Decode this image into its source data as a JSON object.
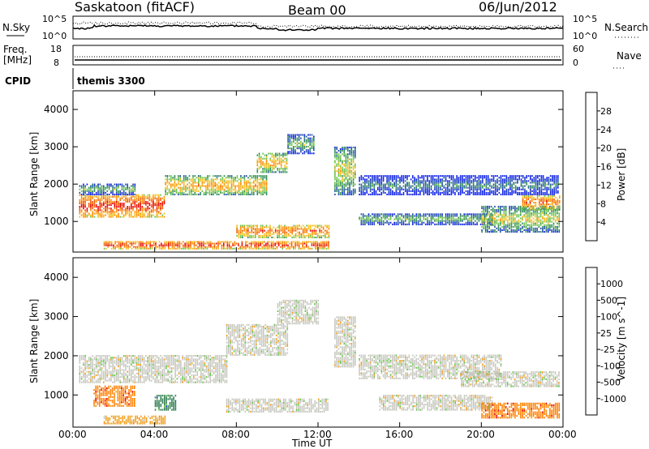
{
  "header": {
    "station": "Saskatoon (fitACF)",
    "beam": "Beam 00",
    "date": "06/Jun/2012"
  },
  "panels": {
    "nsky": {
      "left_label": "N.Sky",
      "ticks_left": [
        "10^5",
        "10^0"
      ],
      "ticks_right": [
        "10^5",
        "10^0"
      ],
      "right_label": "N.Search"
    },
    "freq": {
      "left_label_1": "Freq.",
      "left_label_2": "[MHz]",
      "ticks_left": [
        "18",
        "8"
      ],
      "ticks_right": [
        "60",
        "0"
      ],
      "right_label": "Nave"
    },
    "cpid": {
      "label": "CPID",
      "value": "themis 3300"
    }
  },
  "x_axis": {
    "label": "Time UT",
    "ticks": [
      "00:00",
      "04:00",
      "08:00",
      "12:00",
      "16:00",
      "20:00",
      "00:00"
    ]
  },
  "power_panel": {
    "ylabel": "Slant Range [km]",
    "yticks": [
      "4000",
      "3000",
      "2000",
      "1000"
    ],
    "colorbar_label": "Power [dB]",
    "colorbar_ticks": [
      "28",
      "24",
      "20",
      "16",
      "12",
      "8",
      "4"
    ],
    "colors": [
      "#0a1ee6",
      "#2050a8",
      "#2e8b57",
      "#6cc24a",
      "#f0c020",
      "#ff8c00",
      "#f05a00",
      "#e60000"
    ]
  },
  "velocity_panel": {
    "ylabel": "Slant Range [km]",
    "yticks": [
      "4000",
      "3000",
      "2000",
      "1000"
    ],
    "colorbar_label": "Velocity [m s^-1]",
    "colorbar_ticks": [
      "1000",
      "500",
      "100",
      "25",
      "-25",
      "-100",
      "-500",
      "-1000"
    ],
    "colors": [
      "#1f3fbf",
      "#2e7d4f",
      "#66c44a",
      "#c8c8c0",
      "#f0a020",
      "#ff8000",
      "#e60000"
    ]
  },
  "chart_data": {
    "type": "heatmap",
    "x_range_hours": [
      0,
      24
    ],
    "y_range_km": [
      180,
      4500
    ],
    "power_regions": [
      {
        "t0": 0.3,
        "t1": 4.5,
        "r0": 1100,
        "r1": 1700,
        "level": 7
      },
      {
        "t0": 0.3,
        "t1": 3.0,
        "r0": 1700,
        "r1": 2000,
        "level": 3
      },
      {
        "t0": 4.5,
        "t1": 9.5,
        "r0": 1700,
        "r1": 2200,
        "level": 5
      },
      {
        "t0": 9.0,
        "t1": 10.5,
        "r0": 2300,
        "r1": 2800,
        "level": 5
      },
      {
        "t0": 10.5,
        "t1": 11.8,
        "r0": 2800,
        "r1": 3300,
        "level": 3
      },
      {
        "t0": 8.0,
        "t1": 12.5,
        "r0": 550,
        "r1": 900,
        "level": 6
      },
      {
        "t0": 1.5,
        "t1": 12.5,
        "r0": 250,
        "r1": 450,
        "level": 7
      },
      {
        "t0": 12.8,
        "t1": 13.8,
        "r0": 1700,
        "r1": 3000,
        "level": 4
      },
      {
        "t0": 14.0,
        "t1": 20.5,
        "r0": 900,
        "r1": 1200,
        "level": 3
      },
      {
        "t0": 14.0,
        "t1": 23.8,
        "r0": 1700,
        "r1": 2200,
        "level": 2
      },
      {
        "t0": 20.0,
        "t1": 23.8,
        "r0": 700,
        "r1": 1400,
        "level": 4
      },
      {
        "t0": 22.0,
        "t1": 23.8,
        "r0": 1300,
        "r1": 1700,
        "level": 6
      }
    ],
    "velocity_regions": [
      {
        "t0": 0.3,
        "t1": 7.5,
        "r0": 1300,
        "r1": 2000,
        "level": 3
      },
      {
        "t0": 1.0,
        "t1": 3.0,
        "r0": 700,
        "r1": 1200,
        "level": 5
      },
      {
        "t0": 4.0,
        "t1": 5.0,
        "r0": 600,
        "r1": 1000,
        "level": 1
      },
      {
        "t0": 7.5,
        "t1": 10.5,
        "r0": 2000,
        "r1": 2800,
        "level": 3
      },
      {
        "t0": 10.0,
        "t1": 12.0,
        "r0": 2800,
        "r1": 3400,
        "level": 3
      },
      {
        "t0": 7.5,
        "t1": 12.5,
        "r0": 550,
        "r1": 900,
        "level": 3
      },
      {
        "t0": 1.5,
        "t1": 4.5,
        "r0": 250,
        "r1": 450,
        "level": 4
      },
      {
        "t0": 12.8,
        "t1": 13.8,
        "r0": 1700,
        "r1": 3000,
        "level": 3
      },
      {
        "t0": 14.0,
        "t1": 21.0,
        "r0": 1400,
        "r1": 2000,
        "level": 3
      },
      {
        "t0": 15.0,
        "t1": 20.5,
        "r0": 600,
        "r1": 1000,
        "level": 3
      },
      {
        "t0": 20.0,
        "t1": 23.8,
        "r0": 400,
        "r1": 800,
        "level": 5
      },
      {
        "t0": 19.0,
        "t1": 23.8,
        "r0": 1200,
        "r1": 1600,
        "level": 3
      }
    ]
  }
}
